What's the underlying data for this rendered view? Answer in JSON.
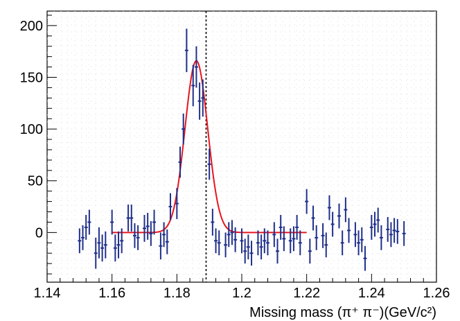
{
  "chart_data": {
    "type": "scatter",
    "title": "",
    "xlabel": "Missing mass (π⁺ π⁻)(GeV/c²)",
    "ylabel": "",
    "xlim": [
      1.14,
      1.26
    ],
    "ylim": [
      -48,
      214
    ],
    "x_ticks": [
      "1.14",
      "1.16",
      "1.18",
      "1.2",
      "1.22",
      "1.24",
      "1.26"
    ],
    "y_ticks": [
      "0",
      "50",
      "100",
      "150",
      "200"
    ],
    "grid": true,
    "colors": {
      "data": "#1f2f8a",
      "fit": "#e8141e",
      "reference_line": "#000000"
    },
    "reference_line_x": 1.189,
    "series": [
      {
        "kind": "points-with-errors",
        "x": [
          1.15,
          1.151,
          1.152,
          1.153,
          1.155,
          1.156,
          1.157,
          1.158,
          1.16,
          1.161,
          1.162,
          1.163,
          1.165,
          1.166,
          1.167,
          1.168,
          1.17,
          1.171,
          1.172,
          1.173,
          1.175,
          1.176,
          1.177,
          1.178,
          1.18,
          1.181,
          1.182,
          1.183,
          1.185,
          1.186,
          1.187,
          1.188,
          1.19,
          1.191,
          1.192,
          1.193,
          1.195,
          1.196,
          1.197,
          1.198,
          1.2,
          1.201,
          1.202,
          1.203,
          1.205,
          1.206,
          1.207,
          1.208,
          1.21,
          1.211,
          1.212,
          1.213,
          1.215,
          1.216,
          1.217,
          1.218,
          1.22,
          1.221,
          1.222,
          1.223,
          1.225,
          1.226,
          1.227,
          1.228,
          1.23,
          1.231,
          1.232,
          1.233,
          1.235,
          1.236,
          1.237,
          1.238,
          1.24,
          1.241,
          1.242,
          1.243,
          1.245,
          1.246,
          1.247,
          1.248,
          1.25
        ],
        "y": [
          -8,
          -5,
          5,
          10,
          -20,
          -10,
          -15,
          -12,
          10,
          -15,
          -12,
          -8,
          14,
          14,
          -3,
          -5,
          4,
          6,
          -1,
          10,
          -13,
          -2,
          -9,
          25,
          28,
          68,
          100,
          176,
          142,
          160,
          127,
          130,
          66,
          10,
          -8,
          -10,
          -12,
          -2,
          0,
          -7,
          -8,
          -18,
          -14,
          -20,
          -10,
          -14,
          -8,
          -10,
          -2,
          -18,
          5,
          -6,
          -8,
          -6,
          5,
          -10,
          30,
          -18,
          14,
          -5,
          -3,
          -12,
          24,
          8,
          16,
          -10,
          22,
          2,
          -2,
          -10,
          -7,
          -25,
          5,
          8,
          12,
          -5,
          3,
          -2,
          2,
          1,
          -1
        ],
        "yerr": [
          12,
          12,
          12,
          12,
          15,
          15,
          13,
          13,
          12,
          13,
          13,
          12,
          13,
          13,
          12,
          12,
          13,
          13,
          12,
          12,
          13,
          12,
          12,
          13,
          15,
          15,
          15,
          21,
          20,
          20,
          18,
          18,
          15,
          13,
          12,
          12,
          12,
          12,
          12,
          12,
          12,
          12,
          12,
          12,
          12,
          12,
          12,
          12,
          12,
          12,
          12,
          12,
          12,
          12,
          12,
          12,
          12,
          12,
          12,
          12,
          12,
          12,
          12,
          12,
          12,
          12,
          12,
          12,
          12,
          12,
          12,
          12,
          12,
          12,
          12,
          12,
          12,
          12,
          12,
          12,
          12
        ]
      },
      {
        "kind": "fit-curve",
        "x_range": [
          1.16,
          1.22
        ],
        "amplitude": 166,
        "mean": 1.186,
        "sigma": 0.0035,
        "baseline": 0
      }
    ]
  }
}
